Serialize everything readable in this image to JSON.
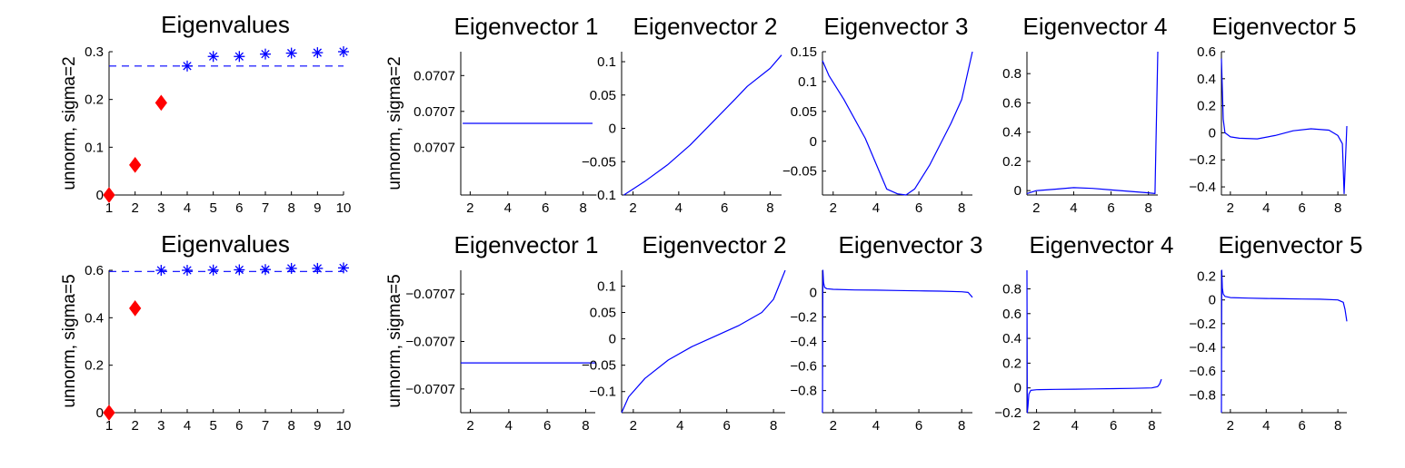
{
  "colors": {
    "curve": "#0000ff",
    "first_eigs": "#ff0000",
    "rest_eigs": "#0000ff",
    "axis": "#000000"
  },
  "chart_data": [
    {
      "type": "scatter",
      "title": "Eigenvalues",
      "ylabel": "unnorm, sigma=2",
      "xlim": [
        1,
        10
      ],
      "ylim": [
        0,
        0.3
      ],
      "xticks": [
        1,
        2,
        3,
        4,
        5,
        6,
        7,
        8,
        9,
        10
      ],
      "yticks": [
        0,
        0.1,
        0.2,
        0.3
      ],
      "xtick_labels": [
        "1",
        "2",
        "3",
        "4",
        "5",
        "6",
        "7",
        "8",
        "9",
        "10"
      ],
      "ytick_labels": [
        "0",
        "0.1",
        "0.2",
        "0.3"
      ],
      "series": [
        {
          "marker": "diamond",
          "color": "#ff0000",
          "x": [
            1,
            2,
            3
          ],
          "y": [
            0,
            0.063,
            0.193
          ]
        },
        {
          "marker": "asterisk",
          "color": "#0000ff",
          "x": [
            4,
            5,
            6,
            7,
            8,
            9,
            10
          ],
          "y": [
            0.27,
            0.29,
            0.29,
            0.295,
            0.297,
            0.298,
            0.3
          ]
        }
      ],
      "hline": 0.27
    },
    {
      "type": "line",
      "title": "Eigenvector 1",
      "ylabel": "unnorm, sigma=2",
      "xlim": [
        1.5,
        8.5
      ],
      "ylim": [
        -1,
        1
      ],
      "xticks": [
        2,
        4,
        6,
        8
      ],
      "yticks": [
        0.667,
        0.167,
        -0.333
      ],
      "xtick_labels": [
        "2",
        "4",
        "6",
        "8"
      ],
      "ytick_labels": [
        "0.0707",
        "0.0707",
        "0.0707"
      ],
      "x": [
        1.6,
        8.5
      ],
      "y": [
        0.0,
        0.0
      ]
    },
    {
      "type": "line",
      "title": "Eigenvector 2",
      "xlim": [
        1.5,
        8.5
      ],
      "ylim": [
        -0.1,
        0.115
      ],
      "xticks": [
        2,
        4,
        6,
        8
      ],
      "yticks": [
        -0.1,
        -0.05,
        0,
        0.05,
        0.1
      ],
      "xtick_labels": [
        "2",
        "4",
        "6",
        "8"
      ],
      "ytick_labels": [
        "−0.1",
        "−0.05",
        "0",
        "0.05",
        "0.1"
      ],
      "x": [
        1.6,
        2.5,
        3.5,
        4.5,
        5.5,
        6.5,
        7.0,
        8.0,
        8.5
      ],
      "y": [
        -0.1,
        -0.08,
        -0.055,
        -0.025,
        0.01,
        0.045,
        0.063,
        0.09,
        0.11
      ]
    },
    {
      "type": "line",
      "title": "Eigenvector 3",
      "xlim": [
        1.5,
        8.5
      ],
      "ylim": [
        -0.09,
        0.15
      ],
      "xticks": [
        2,
        4,
        6,
        8
      ],
      "yticks": [
        -0.05,
        0,
        0.05,
        0.1,
        0.15
      ],
      "xtick_labels": [
        "2",
        "4",
        "6",
        "8"
      ],
      "ytick_labels": [
        "−0.05",
        "0",
        "0.05",
        "0.1",
        "0.15"
      ],
      "x": [
        1.5,
        1.8,
        2.5,
        3.5,
        4.5,
        5.0,
        5.4,
        5.8,
        6.5,
        7.5,
        8.0,
        8.5
      ],
      "y": [
        0.135,
        0.11,
        0.07,
        0.005,
        -0.08,
        -0.088,
        -0.09,
        -0.08,
        -0.04,
        0.03,
        0.07,
        0.15
      ]
    },
    {
      "type": "line",
      "title": "Eigenvector 4",
      "xlim": [
        1.5,
        8.5
      ],
      "ylim": [
        -0.03,
        0.95
      ],
      "xticks": [
        2,
        4,
        6,
        8
      ],
      "yticks": [
        0,
        0.2,
        0.4,
        0.6,
        0.8
      ],
      "xtick_labels": [
        "2",
        "4",
        "6",
        "8"
      ],
      "ytick_labels": [
        "0",
        "0.2",
        "0.4",
        "0.6",
        "0.8"
      ],
      "x": [
        1.5,
        2.0,
        3.0,
        4.0,
        5.0,
        6.0,
        7.0,
        8.0,
        8.35,
        8.4,
        8.5
      ],
      "y": [
        -0.02,
        0.0,
        0.01,
        0.02,
        0.015,
        0.005,
        -0.005,
        -0.015,
        -0.02,
        0.3,
        0.95
      ]
    },
    {
      "type": "line",
      "title": "Eigenvector 5",
      "xlim": [
        1.5,
        8.5
      ],
      "ylim": [
        -0.46,
        0.6
      ],
      "xticks": [
        2,
        4,
        6,
        8
      ],
      "yticks": [
        -0.4,
        -0.2,
        0,
        0.2,
        0.4,
        0.6
      ],
      "xtick_labels": [
        "2",
        "4",
        "6",
        "8"
      ],
      "ytick_labels": [
        "−0.4",
        "−0.2",
        "0",
        "0.2",
        "0.4",
        "0.6"
      ],
      "x": [
        1.5,
        1.6,
        1.7,
        2.0,
        2.5,
        3.5,
        4.5,
        5.5,
        6.5,
        7.5,
        8.0,
        8.25,
        8.35,
        8.5
      ],
      "y": [
        0.55,
        0.1,
        0.0,
        -0.03,
        -0.04,
        -0.045,
        -0.02,
        0.015,
        0.03,
        0.02,
        -0.02,
        -0.08,
        -0.45,
        0.05
      ]
    },
    {
      "type": "scatter",
      "title": "Eigenvalues",
      "ylabel": "unnorm, sigma=5",
      "xlim": [
        1,
        10
      ],
      "ylim": [
        0,
        0.6
      ],
      "xticks": [
        1,
        2,
        3,
        4,
        5,
        6,
        7,
        8,
        9,
        10
      ],
      "yticks": [
        0,
        0.2,
        0.4,
        0.6
      ],
      "xtick_labels": [
        "1",
        "2",
        "3",
        "4",
        "5",
        "6",
        "7",
        "8",
        "9",
        "10"
      ],
      "ytick_labels": [
        "0",
        "0.2",
        "0.4",
        "0.6"
      ],
      "series": [
        {
          "marker": "diamond",
          "color": "#ff0000",
          "x": [
            1,
            2
          ],
          "y": [
            0,
            0.44
          ]
        },
        {
          "marker": "asterisk",
          "color": "#0000ff",
          "x": [
            3,
            4,
            5,
            6,
            7,
            8,
            9,
            10
          ],
          "y": [
            0.6,
            0.6,
            0.601,
            0.602,
            0.603,
            0.608,
            0.608,
            0.61
          ]
        }
      ],
      "hline": 0.595
    },
    {
      "type": "line",
      "title": "Eigenvector 1",
      "ylabel": "unnorm, sigma=5",
      "xlim": [
        1.5,
        8.5
      ],
      "ylim": [
        -1,
        1
      ],
      "xticks": [
        2,
        4,
        6,
        8
      ],
      "yticks": [
        0.667,
        0.0,
        -0.667
      ],
      "xtick_labels": [
        "2",
        "4",
        "6",
        "8"
      ],
      "ytick_labels": [
        "−0.0707",
        "−0.0707",
        "−0.0707"
      ],
      "x": [
        1.5,
        8.5
      ],
      "y": [
        -0.3,
        -0.3
      ]
    },
    {
      "type": "line",
      "title": "Eigenvector 2",
      "xlim": [
        1.5,
        8.5
      ],
      "ylim": [
        -0.14,
        0.13
      ],
      "xticks": [
        2,
        4,
        6,
        8
      ],
      "yticks": [
        -0.1,
        -0.05,
        0,
        0.05,
        0.1
      ],
      "xtick_labels": [
        "2",
        "4",
        "6",
        "8"
      ],
      "ytick_labels": [
        "−0.1",
        "−0.05",
        "0",
        "0.05",
        "0.1"
      ],
      "x": [
        1.5,
        1.8,
        2.5,
        3.5,
        4.5,
        5.5,
        6.5,
        7.5,
        8.0,
        8.5
      ],
      "y": [
        -0.14,
        -0.11,
        -0.075,
        -0.04,
        -0.015,
        0.005,
        0.025,
        0.05,
        0.075,
        0.13
      ]
    },
    {
      "type": "line",
      "title": "Eigenvector 3",
      "xlim": [
        1.5,
        8.5
      ],
      "ylim": [
        -0.98,
        0.18
      ],
      "xticks": [
        2,
        4,
        6,
        8
      ],
      "yticks": [
        -0.8,
        -0.6,
        -0.4,
        -0.2,
        0
      ],
      "xtick_labels": [
        "2",
        "4",
        "6",
        "8"
      ],
      "ytick_labels": [
        "−0.8",
        "−0.6",
        "−0.4",
        "−0.2",
        "0"
      ],
      "x": [
        1.5,
        1.52,
        1.55,
        1.6,
        1.7,
        2.0,
        3.0,
        4.0,
        5.0,
        6.0,
        7.0,
        8.0,
        8.3,
        8.5
      ],
      "y": [
        -0.98,
        0.18,
        0.08,
        0.04,
        0.03,
        0.025,
        0.02,
        0.018,
        0.015,
        0.012,
        0.01,
        0.005,
        0.0,
        -0.04
      ]
    },
    {
      "type": "line",
      "title": "Eigenvector 4",
      "xlim": [
        1.5,
        8.5
      ],
      "ylim": [
        -0.2,
        0.95
      ],
      "xticks": [
        2,
        4,
        6,
        8
      ],
      "yticks": [
        -0.2,
        0,
        0.2,
        0.4,
        0.6,
        0.8
      ],
      "xtick_labels": [
        "2",
        "4",
        "6",
        "8"
      ],
      "ytick_labels": [
        "−0.2",
        "0",
        "0.2",
        "0.4",
        "0.6",
        "0.8"
      ],
      "x": [
        1.5,
        1.52,
        1.55,
        1.6,
        1.7,
        2.0,
        3.0,
        4.0,
        5.0,
        6.0,
        7.0,
        8.0,
        8.3,
        8.4,
        8.5
      ],
      "y": [
        0.95,
        -0.2,
        -0.15,
        -0.05,
        -0.02,
        -0.015,
        -0.012,
        -0.01,
        -0.008,
        -0.006,
        -0.004,
        0.0,
        0.01,
        0.03,
        0.07
      ]
    },
    {
      "type": "line",
      "title": "Eigenvector 5",
      "xlim": [
        1.5,
        8.5
      ],
      "ylim": [
        -0.95,
        0.25
      ],
      "xticks": [
        2,
        4,
        6,
        8
      ],
      "yticks": [
        -0.8,
        -0.6,
        -0.4,
        -0.2,
        0,
        0.2
      ],
      "xtick_labels": [
        "2",
        "4",
        "6",
        "8"
      ],
      "ytick_labels": [
        "−0.8",
        "−0.6",
        "−0.4",
        "−0.2",
        "0",
        "0.2"
      ],
      "x": [
        1.5,
        1.52,
        1.55,
        1.6,
        1.7,
        2.0,
        3.0,
        4.0,
        5.0,
        6.0,
        7.0,
        8.0,
        8.3,
        8.4,
        8.5
      ],
      "y": [
        -0.95,
        0.25,
        0.1,
        0.05,
        0.03,
        0.02,
        0.015,
        0.012,
        0.01,
        0.008,
        0.006,
        0.0,
        -0.02,
        -0.08,
        -0.18
      ]
    }
  ]
}
